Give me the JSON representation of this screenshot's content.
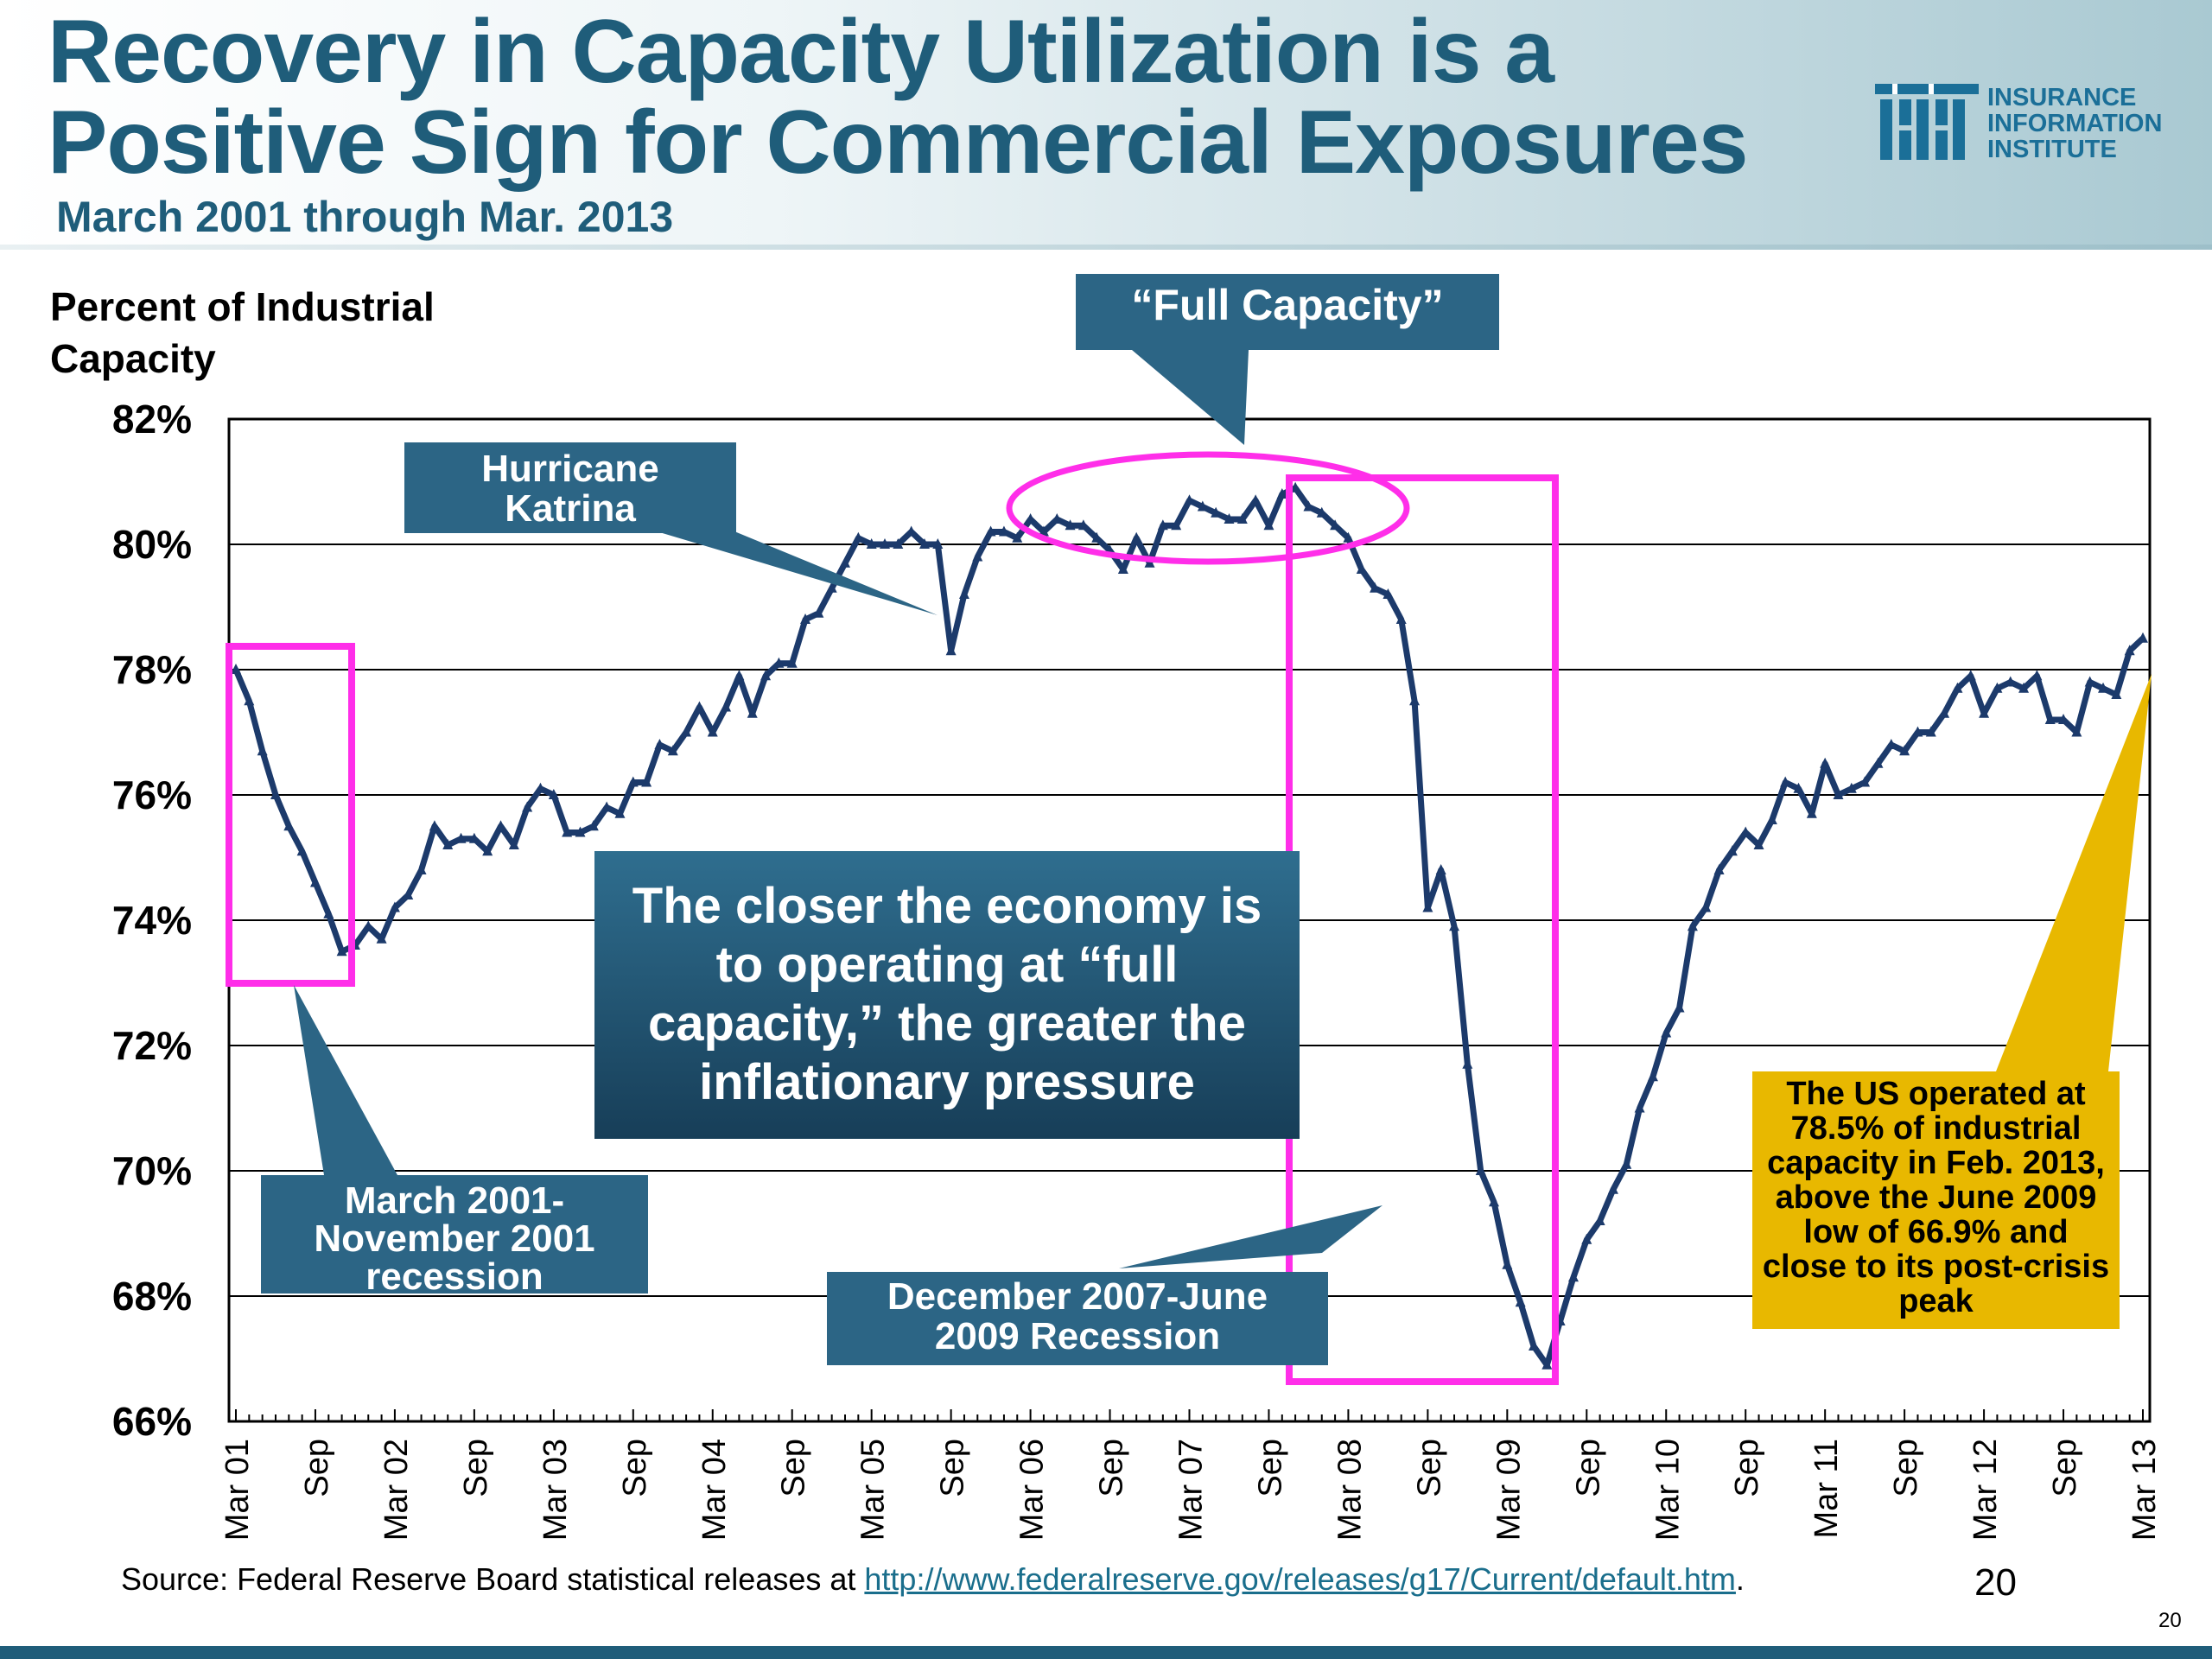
{
  "slide": {
    "title_line1": "Recovery in Capacity Utilization is a",
    "title_line2": "Positive Sign for Commercial Exposures",
    "subtitle": "March 2001 through Mar. 2013",
    "logo_line1": "INSURANCE",
    "logo_line2": "INFORMATION",
    "logo_line3": "INSTITUTE",
    "source_prefix": "Source:  Federal Reserve Board statistical releases at ",
    "source_url": "http://www.federalreserve.gov/releases/g17/Current/default.htm",
    "source_suffix": ".",
    "page_number": "20",
    "page_number_small": "20"
  },
  "callouts": {
    "full_capacity": "“Full Capacity”",
    "hurricane": "Hurricane Katrina",
    "recession_2001": "March 2001-November 2001 recession",
    "main_message": "The closer the economy is to operating at “full capacity,” the greater the inflationary pressure",
    "recession_2007": "December 2007-June 2009 Recession",
    "us_note": "The US operated at 78.5% of industrial capacity in Feb. 2013, above the June 2009 low of 66.9% and close to its post-crisis peak"
  },
  "colors": {
    "line": "#1c3a6b",
    "callout_blue": "#2c6585",
    "callout_dark": "#173e58",
    "highlight_magenta": "#ff2ee9",
    "note_gold": "#e8b800",
    "title_blue": "#1f5d7a"
  },
  "chart_data": {
    "type": "line",
    "title": "",
    "ylabel": "Percent of Industrial Capacity",
    "xlabel": "",
    "ylim": [
      66,
      82
    ],
    "yticks": [
      66,
      68,
      70,
      72,
      74,
      76,
      78,
      80,
      82
    ],
    "ytick_labels": [
      "66%",
      "68%",
      "70%",
      "72%",
      "74%",
      "76%",
      "78%",
      "80%",
      "82%"
    ],
    "x_start": "Mar 2001",
    "x_end": "Mar 2013",
    "xtick_labels": [
      "Mar 01",
      "Sep",
      "Mar 02",
      "Sep",
      "Mar 03",
      "Sep",
      "Mar 04",
      "Sep",
      "Mar 05",
      "Sep",
      "Mar 06",
      "Sep",
      "Mar 07",
      "Sep",
      "Mar 08",
      "Sep",
      "Mar 09",
      "Sep",
      "Mar 10",
      "Sep",
      "Mar 11",
      "Sep",
      "Mar 12",
      "Sep",
      "Mar 13"
    ],
    "series": [
      {
        "name": "Capacity Utilization",
        "values": [
          78.0,
          77.5,
          76.7,
          76.0,
          75.5,
          75.1,
          74.6,
          74.1,
          73.5,
          73.6,
          73.9,
          73.7,
          74.2,
          74.4,
          74.8,
          75.5,
          75.2,
          75.3,
          75.3,
          75.1,
          75.5,
          75.2,
          75.8,
          76.1,
          76.0,
          75.4,
          75.4,
          75.5,
          75.8,
          75.7,
          76.2,
          76.2,
          76.8,
          76.7,
          77.0,
          77.4,
          77.0,
          77.4,
          77.9,
          77.3,
          77.9,
          78.1,
          78.1,
          78.8,
          78.9,
          79.3,
          79.7,
          80.1,
          80.0,
          80.0,
          80.0,
          80.2,
          80.0,
          80.0,
          78.3,
          79.2,
          79.8,
          80.2,
          80.2,
          80.1,
          80.4,
          80.2,
          80.4,
          80.3,
          80.3,
          80.1,
          79.9,
          79.6,
          80.1,
          79.7,
          80.3,
          80.3,
          80.7,
          80.6,
          80.5,
          80.4,
          80.4,
          80.7,
          80.3,
          80.8,
          80.9,
          80.6,
          80.5,
          80.3,
          80.1,
          79.6,
          79.3,
          79.2,
          78.8,
          77.5,
          74.2,
          74.8,
          73.9,
          71.7,
          70.0,
          69.5,
          68.5,
          67.9,
          67.2,
          66.9,
          67.6,
          68.3,
          68.9,
          69.2,
          69.7,
          70.1,
          71.0,
          71.5,
          72.2,
          72.6,
          73.9,
          74.2,
          74.8,
          75.1,
          75.4,
          75.2,
          75.6,
          76.2,
          76.1,
          75.7,
          76.5,
          76.0,
          76.1,
          76.2,
          76.5,
          76.8,
          76.7,
          77.0,
          77.0,
          77.3,
          77.7,
          77.9,
          77.3,
          77.7,
          77.8,
          77.7,
          77.9,
          77.2,
          77.2,
          77.0,
          77.8,
          77.7,
          77.6,
          78.3,
          78.5
        ]
      }
    ],
    "annotations": [
      "Hurricane Katrina dip Sep 2005",
      "June 2009 low of 66.9%",
      "Feb 2013 value 78.5%"
    ]
  }
}
